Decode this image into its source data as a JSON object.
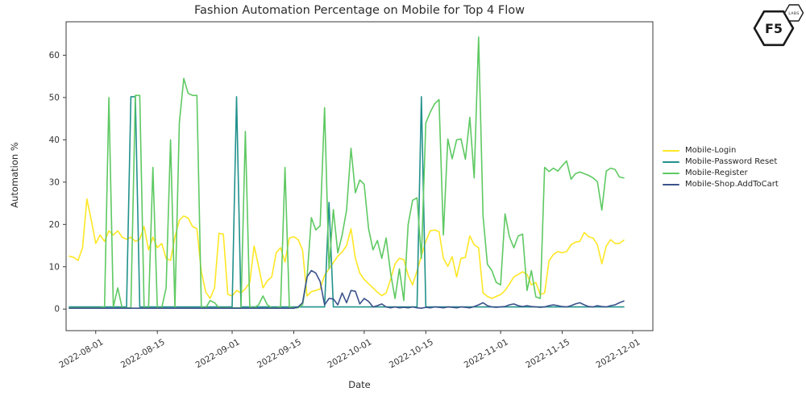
{
  "chart_data": {
    "type": "line",
    "title": "Fashion Automation Percentage on Mobile for Top 4 Flow",
    "xlabel": "Date",
    "ylabel": "Automation %",
    "grid": false,
    "legend_position": "right-outside",
    "ylim": [
      -5.1,
      67.9
    ],
    "yticks": [
      0,
      10,
      20,
      30,
      40,
      50,
      60
    ],
    "xticks": [
      "2022-08-01",
      "2022-08-15",
      "2022-09-01",
      "2022-09-15",
      "2022-10-01",
      "2022-10-15",
      "2022-11-01",
      "2022-11-15",
      "2022-12-01"
    ],
    "x_dates": [
      "2022-07-26",
      "2022-07-27",
      "2022-07-28",
      "2022-07-29",
      "2022-07-30",
      "2022-07-31",
      "2022-08-01",
      "2022-08-02",
      "2022-08-03",
      "2022-08-04",
      "2022-08-05",
      "2022-08-06",
      "2022-08-07",
      "2022-08-08",
      "2022-08-09",
      "2022-08-10",
      "2022-08-11",
      "2022-08-12",
      "2022-08-13",
      "2022-08-14",
      "2022-08-15",
      "2022-08-16",
      "2022-08-17",
      "2022-08-18",
      "2022-08-19",
      "2022-08-20",
      "2022-08-21",
      "2022-08-22",
      "2022-08-23",
      "2022-08-24",
      "2022-08-25",
      "2022-08-26",
      "2022-08-27",
      "2022-08-28",
      "2022-08-29",
      "2022-08-30",
      "2022-08-31",
      "2022-09-01",
      "2022-09-02",
      "2022-09-03",
      "2022-09-04",
      "2022-09-05",
      "2022-09-06",
      "2022-09-07",
      "2022-09-08",
      "2022-09-09",
      "2022-09-10",
      "2022-09-11",
      "2022-09-12",
      "2022-09-13",
      "2022-09-14",
      "2022-09-15",
      "2022-09-16",
      "2022-09-17",
      "2022-09-18",
      "2022-09-19",
      "2022-09-20",
      "2022-09-21",
      "2022-09-22",
      "2022-09-23",
      "2022-09-24",
      "2022-09-25",
      "2022-09-26",
      "2022-09-27",
      "2022-09-28",
      "2022-09-29",
      "2022-09-30",
      "2022-10-01",
      "2022-10-02",
      "2022-10-03",
      "2022-10-04",
      "2022-10-05",
      "2022-10-06",
      "2022-10-07",
      "2022-10-08",
      "2022-10-09",
      "2022-10-10",
      "2022-10-11",
      "2022-10-12",
      "2022-10-13",
      "2022-10-14",
      "2022-10-15",
      "2022-10-16",
      "2022-10-17",
      "2022-10-18",
      "2022-10-19",
      "2022-10-20",
      "2022-10-21",
      "2022-10-22",
      "2022-10-23",
      "2022-10-24",
      "2022-10-25",
      "2022-10-26",
      "2022-10-27",
      "2022-10-28",
      "2022-10-29",
      "2022-10-30",
      "2022-10-31",
      "2022-11-01",
      "2022-11-02",
      "2022-11-03",
      "2022-11-04",
      "2022-11-05",
      "2022-11-06",
      "2022-11-07",
      "2022-11-08",
      "2022-11-09",
      "2022-11-10",
      "2022-11-11",
      "2022-11-12",
      "2022-11-13",
      "2022-11-14",
      "2022-11-15",
      "2022-11-16",
      "2022-11-17",
      "2022-11-18",
      "2022-11-19",
      "2022-11-20",
      "2022-11-21",
      "2022-11-22",
      "2022-11-23",
      "2022-11-24",
      "2022-11-25",
      "2022-11-26",
      "2022-11-27",
      "2022-11-28",
      "2022-11-29"
    ],
    "series": [
      {
        "name": "Mobile-Login",
        "color": "#fde725",
        "values": [
          12.5,
          12.2,
          11.5,
          14.5,
          26.0,
          21.0,
          15.5,
          17.5,
          16.0,
          18.5,
          17.5,
          18.5,
          17.0,
          16.5,
          17.0,
          16.0,
          16.5,
          19.5,
          14.0,
          17.0,
          14.5,
          15.5,
          12.0,
          11.5,
          17.0,
          21.0,
          22.0,
          21.5,
          19.5,
          19.0,
          8.8,
          4.0,
          2.5,
          5.0,
          17.9,
          17.7,
          3.5,
          3.1,
          4.4,
          3.8,
          4.8,
          6.3,
          14.9,
          10.1,
          5.0,
          6.7,
          7.6,
          13.3,
          14.5,
          11.1,
          16.8,
          17.1,
          16.4,
          13.9,
          3.1,
          4.1,
          4.4,
          4.8,
          8.0,
          9.5,
          11.0,
          12.5,
          13.5,
          15.0,
          19.0,
          12.0,
          8.5,
          7.0,
          6.0,
          5.0,
          4.0,
          3.2,
          3.8,
          7.0,
          10.7,
          12.0,
          11.7,
          8.0,
          5.7,
          9.0,
          12.6,
          16.0,
          18.5,
          18.7,
          18.3,
          12.0,
          10.1,
          12.4,
          7.6,
          12.0,
          12.2,
          17.3,
          15.2,
          14.5,
          3.8,
          3.0,
          2.5,
          3.0,
          3.4,
          4.4,
          5.9,
          7.6,
          8.2,
          8.8,
          8.2,
          5.7,
          6.3,
          3.4,
          3.8,
          11.4,
          12.9,
          13.6,
          13.3,
          13.6,
          15.2,
          15.8,
          16.0,
          18.1,
          17.1,
          16.8,
          15.2,
          10.7,
          14.9,
          16.4,
          15.5,
          15.5,
          16.3
        ]
      },
      {
        "name": "Mobile-Password Reset",
        "color": "#21918c",
        "values": [
          0.5,
          0.5,
          0.5,
          0.5,
          0.5,
          0.5,
          0.5,
          0.5,
          0.5,
          0.5,
          0.5,
          0.5,
          0.5,
          0.5,
          50.2,
          50.2,
          0.5,
          0.5,
          0.5,
          0.5,
          0.5,
          0.5,
          0.5,
          0.5,
          0.5,
          0.5,
          0.5,
          0.5,
          0.5,
          0.5,
          0.5,
          0.5,
          0.5,
          0.5,
          0.5,
          0.5,
          0.5,
          0.5,
          50.2,
          0.5,
          0.5,
          0.5,
          0.5,
          0.5,
          0.5,
          0.5,
          0.5,
          0.5,
          0.5,
          0.5,
          0.5,
          0.5,
          0.5,
          0.5,
          0.5,
          0.5,
          0.5,
          0.5,
          0.5,
          25.2,
          0.5,
          0.5,
          0.5,
          0.5,
          0.5,
          0.5,
          0.5,
          0.5,
          0.5,
          0.5,
          0.5,
          0.5,
          0.5,
          0.5,
          0.5,
          0.5,
          0.5,
          0.5,
          0.5,
          0.5,
          50.2,
          0.5,
          0.5,
          0.5,
          0.5,
          0.5,
          0.5,
          0.5,
          0.5,
          0.5,
          0.5,
          0.5,
          0.5,
          0.5,
          0.5,
          0.5,
          0.5,
          0.5,
          0.5,
          0.5,
          0.5,
          0.5,
          0.5,
          0.5,
          0.5,
          0.5,
          0.5,
          0.5,
          0.5,
          0.5,
          0.5,
          0.5,
          0.5,
          0.5,
          0.5,
          0.5,
          0.5,
          0.5,
          0.5,
          0.5,
          0.5,
          0.5,
          0.5,
          0.5,
          0.5,
          0.5,
          0.5
        ]
      },
      {
        "name": "Mobile-Register",
        "color": "#5ec962",
        "values": [
          0.3,
          0.3,
          0.3,
          0.3,
          0.3,
          0.3,
          0.3,
          0.3,
          0.5,
          50.0,
          0.5,
          5.0,
          0.3,
          0.3,
          0.3,
          50.5,
          50.5,
          0.3,
          0.3,
          33.5,
          0.3,
          0.3,
          5.0,
          40.0,
          0.3,
          44.0,
          54.5,
          51.0,
          50.5,
          50.5,
          0.5,
          0.3,
          2.0,
          1.5,
          0.3,
          0.3,
          0.3,
          0.3,
          0.3,
          0.3,
          42.0,
          0.5,
          0.3,
          1.0,
          3.1,
          1.0,
          0.3,
          0.3,
          0.5,
          33.5,
          0.5,
          0.3,
          0.3,
          1.0,
          7.3,
          21.6,
          18.7,
          19.7,
          47.6,
          9.5,
          23.5,
          13.3,
          17.5,
          23.4,
          38.0,
          27.5,
          30.5,
          29.5,
          19.0,
          14.0,
          16.2,
          12.0,
          16.8,
          8.5,
          2.5,
          9.5,
          2.0,
          20.0,
          25.7,
          26.3,
          12.0,
          44.0,
          46.5,
          48.5,
          49.5,
          17.5,
          40.2,
          35.5,
          40.0,
          40.2,
          35.4,
          45.3,
          31.0,
          64.3,
          22.0,
          10.6,
          9.1,
          6.3,
          5.7,
          22.5,
          17.1,
          14.5,
          17.3,
          17.7,
          4.4,
          9.1,
          2.9,
          2.5,
          33.5,
          32.5,
          33.3,
          32.6,
          33.9,
          35.0,
          30.7,
          32.0,
          32.4,
          32.0,
          31.6,
          31.0,
          30.1,
          23.4,
          32.6,
          33.3,
          33.0,
          31.2,
          31.0
        ]
      },
      {
        "name": "Mobile-Shop.AddToCart",
        "color": "#3b528b",
        "values": [
          0.2,
          0.2,
          0.2,
          0.2,
          0.2,
          0.2,
          0.2,
          0.2,
          0.2,
          0.2,
          0.2,
          0.2,
          0.2,
          0.2,
          0.2,
          0.2,
          0.2,
          0.2,
          0.2,
          0.2,
          0.2,
          0.2,
          0.2,
          0.2,
          0.2,
          0.2,
          0.2,
          0.2,
          0.2,
          0.2,
          0.2,
          0.2,
          0.2,
          0.2,
          0.2,
          0.2,
          0.2,
          0.2,
          0.2,
          0.2,
          0.2,
          0.2,
          0.2,
          0.2,
          0.2,
          0.2,
          0.2,
          0.2,
          0.2,
          0.2,
          0.2,
          0.2,
          0.5,
          1.5,
          7.6,
          9.1,
          8.5,
          6.5,
          1.0,
          2.5,
          2.4,
          1.0,
          3.8,
          1.5,
          4.4,
          4.2,
          1.2,
          2.5,
          1.8,
          0.5,
          0.8,
          1.2,
          0.5,
          0.3,
          0.5,
          0.3,
          0.4,
          0.3,
          0.5,
          0.3,
          0.2,
          0.4,
          0.3,
          0.5,
          0.4,
          0.3,
          0.5,
          0.4,
          0.3,
          0.5,
          0.4,
          0.3,
          0.6,
          1.0,
          1.5,
          0.8,
          0.5,
          0.4,
          0.5,
          0.6,
          1.0,
          1.2,
          0.8,
          0.6,
          0.8,
          0.6,
          0.5,
          0.4,
          0.5,
          0.8,
          1.0,
          0.8,
          0.6,
          0.5,
          0.8,
          1.2,
          1.5,
          1.0,
          0.6,
          0.5,
          0.8,
          0.6,
          0.5,
          0.8,
          1.0,
          1.5,
          1.9
        ]
      }
    ]
  },
  "logo": {
    "main": "F5",
    "sub": "LABS"
  }
}
